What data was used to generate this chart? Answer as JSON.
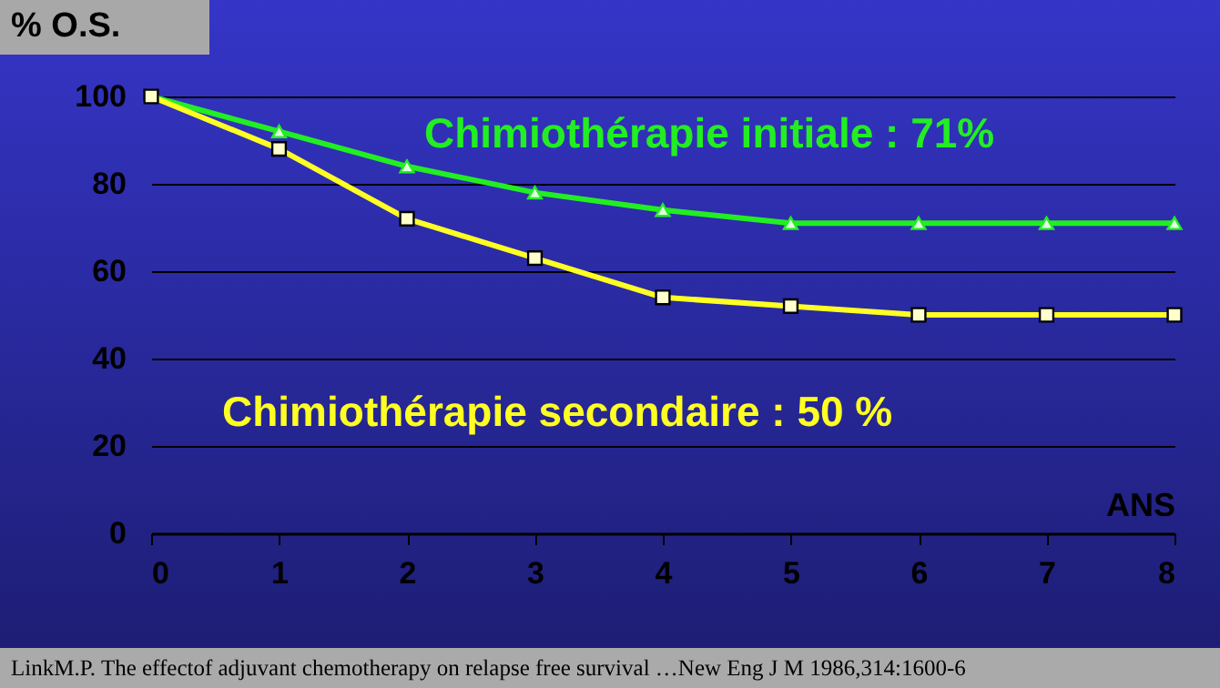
{
  "chart_data": {
    "type": "line",
    "ylabel": "% O.S.",
    "xlabel": "ANS",
    "x": [
      0,
      1,
      2,
      3,
      4,
      5,
      6,
      7,
      8
    ],
    "series": [
      {
        "name": "Chimiothérapie initiale : 71%",
        "color": "#22ee22",
        "marker": "triangle",
        "values": [
          100,
          92,
          84,
          78,
          74,
          71,
          71,
          71,
          71
        ]
      },
      {
        "name": "Chimiothérapie secondaire : 50 %",
        "color": "#ffff22",
        "marker": "square",
        "values": [
          100,
          88,
          72,
          63,
          54,
          52,
          50,
          50,
          50
        ]
      }
    ],
    "xlim": [
      0,
      8
    ],
    "xticks": [
      0,
      1,
      2,
      3,
      4,
      5,
      6,
      7,
      8
    ],
    "ylim": [
      0,
      100
    ],
    "yticks": [
      0,
      20,
      40,
      60,
      80,
      100
    ],
    "grid": "y",
    "annotations": [
      "LinkM.P. The effectof adjuvant chemotherapy on relapse free survival …New Eng J M 1986,314:1600-6"
    ]
  }
}
